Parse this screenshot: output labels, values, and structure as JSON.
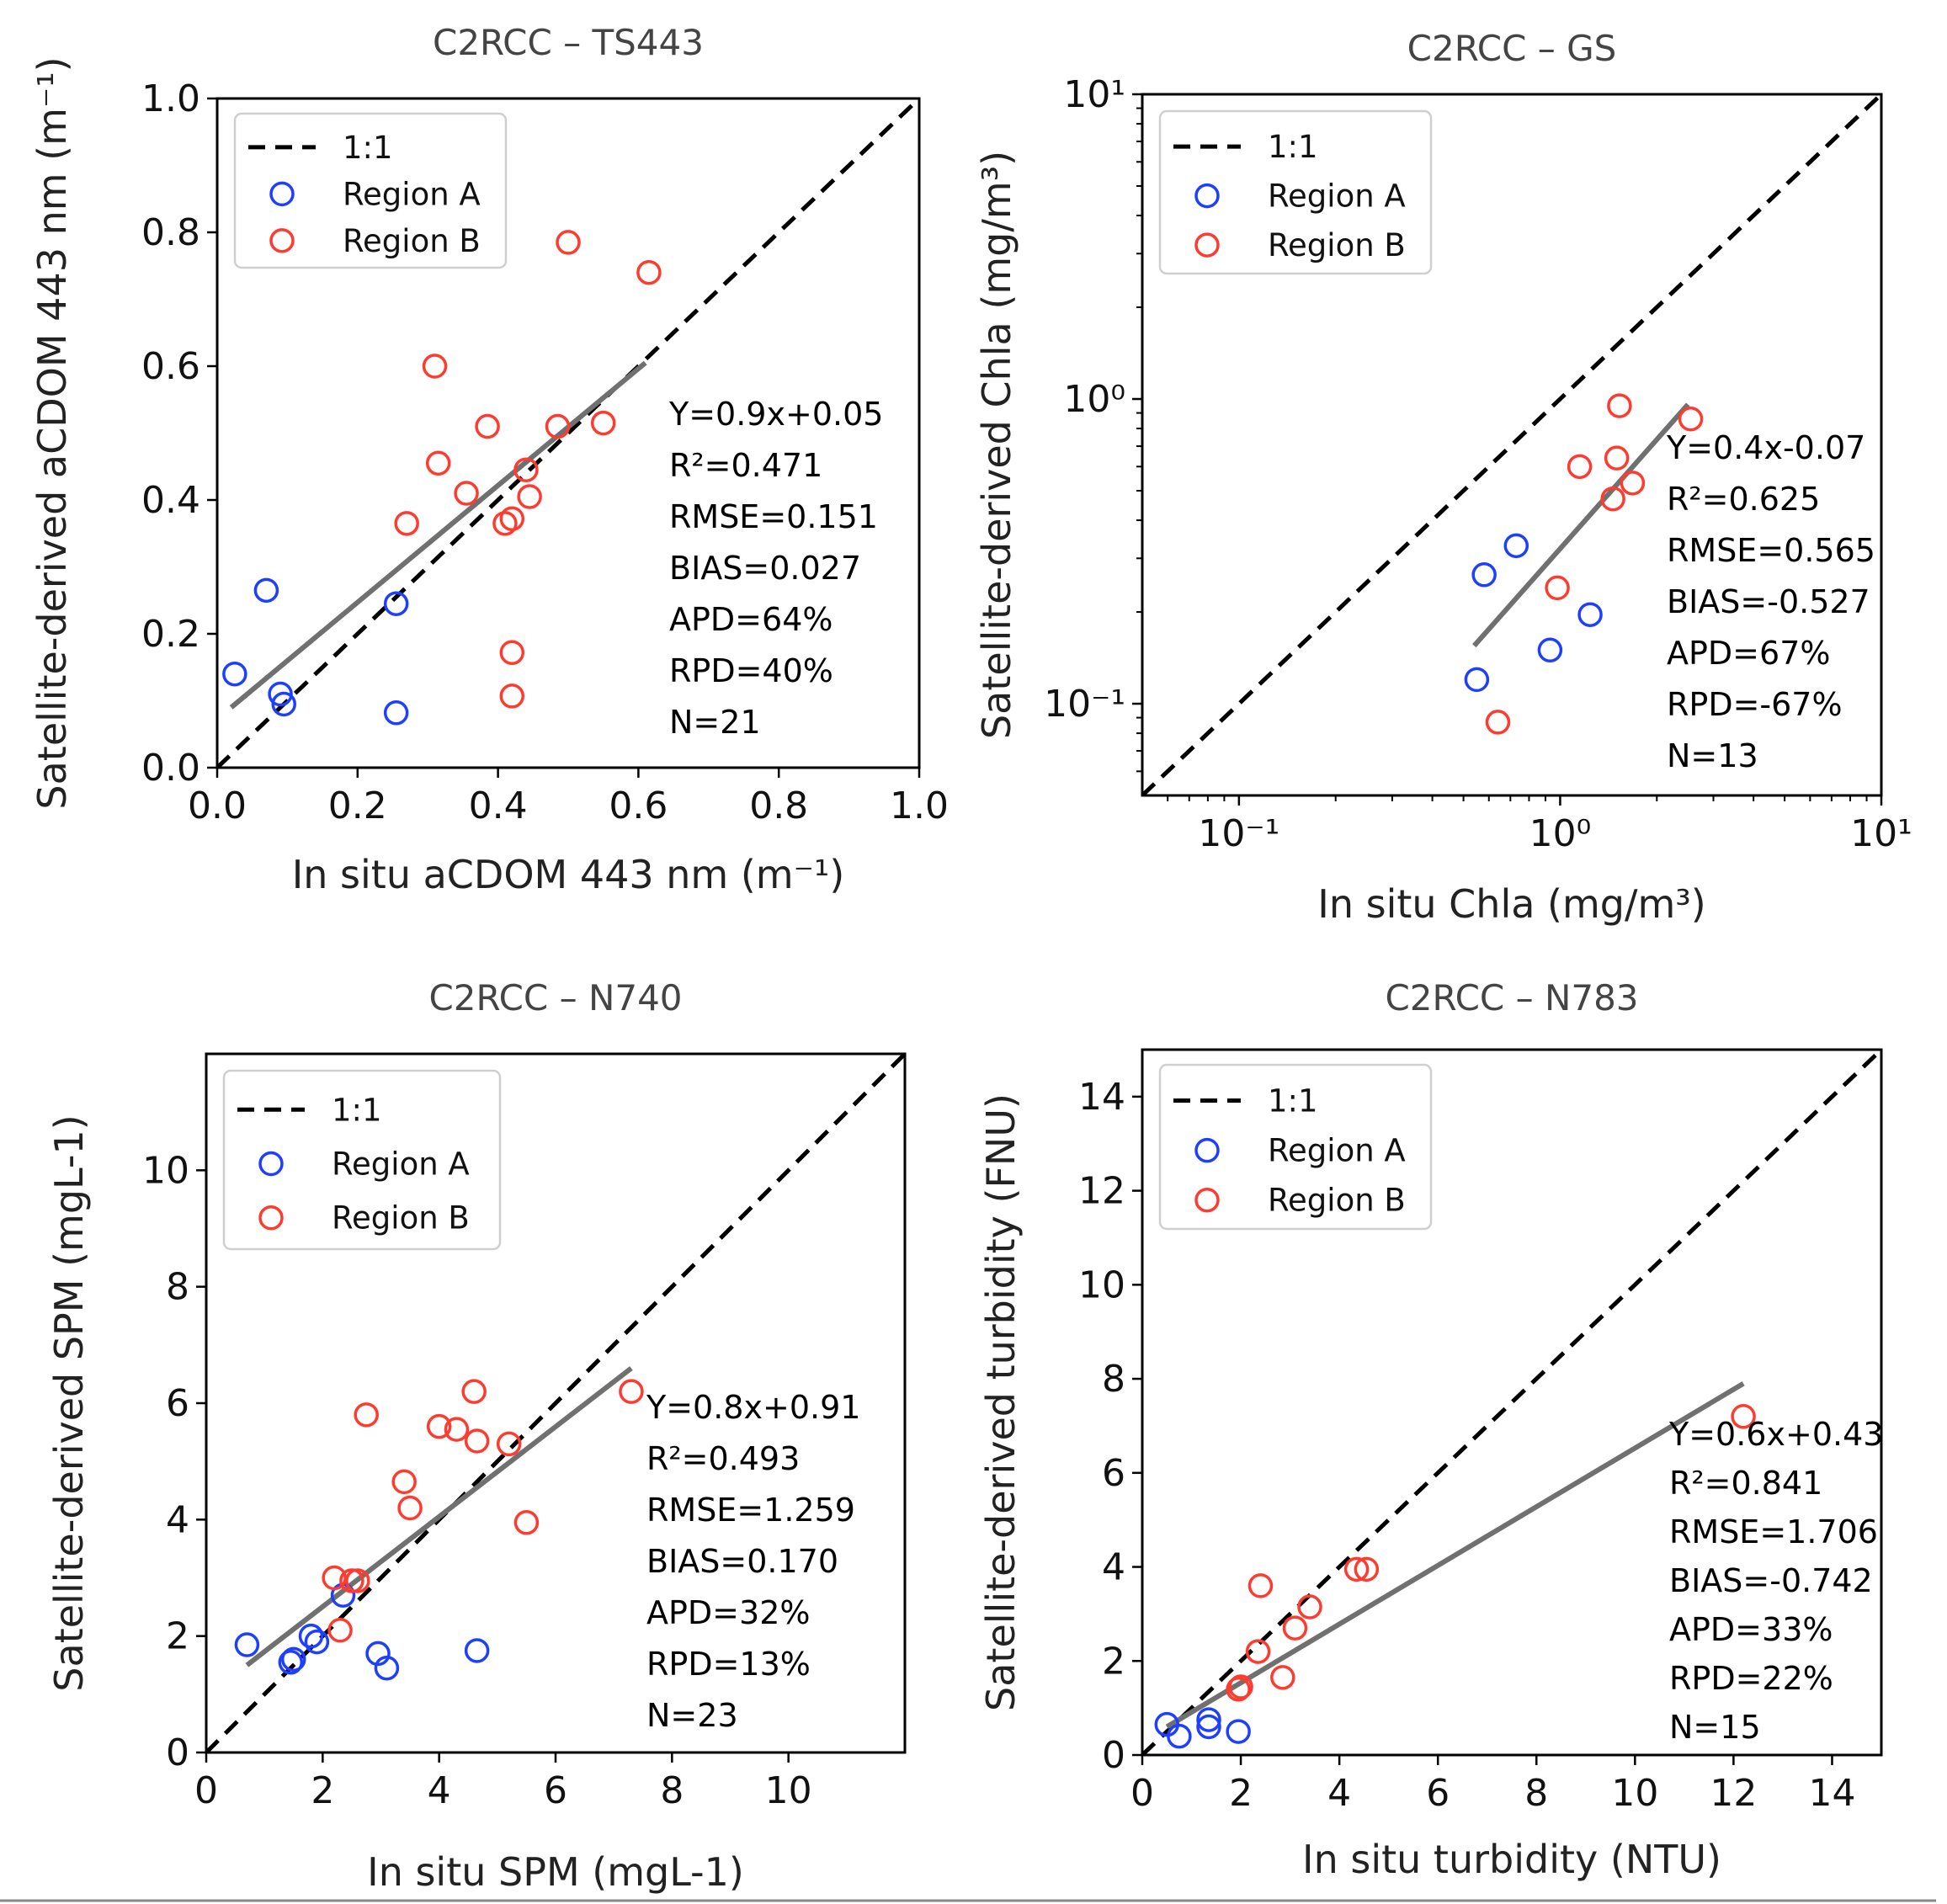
{
  "legend_labels": {
    "one_to_one": "1:1",
    "region_a": "Region A",
    "region_b": "Region B"
  },
  "colors": {
    "region_a": "#1f3fff",
    "region_b": "#ff3b2f",
    "fit": "#707070",
    "one_to_one": "#000000"
  },
  "chart_data": [
    {
      "id": "ts443",
      "type": "scatter",
      "title": "C2RCC – TS443",
      "xlabel": "In situ aCDOM 443 nm (m⁻¹)",
      "ylabel": "Satellite-derived aCDOM 443 nm (m⁻¹)",
      "scale": "linear",
      "xlim": [
        0,
        1
      ],
      "ylim": [
        0,
        1
      ],
      "xticks": [
        0,
        0.2,
        0.4,
        0.6,
        0.8,
        1.0
      ],
      "yticks": [
        0,
        0.2,
        0.4,
        0.6,
        0.8,
        1.0
      ],
      "xtick_labels": [
        "0.0",
        "0.2",
        "0.4",
        "0.6",
        "0.8",
        "1.0"
      ],
      "ytick_labels": [
        "0.0",
        "0.2",
        "0.4",
        "0.6",
        "0.8",
        "1.0"
      ],
      "legend": [
        "1:1",
        "Region A",
        "Region B"
      ],
      "fit": {
        "x": [
          0.02,
          0.61
        ],
        "y": [
          0.09,
          0.605
        ]
      },
      "series": [
        {
          "name": "Region A",
          "x": [
            0.025,
            0.07,
            0.09,
            0.095,
            0.255,
            0.255
          ],
          "y": [
            0.14,
            0.265,
            0.11,
            0.095,
            0.245,
            0.082
          ]
        },
        {
          "name": "Region B",
          "x": [
            0.5,
            0.615,
            0.31,
            0.385,
            0.485,
            0.55,
            0.315,
            0.355,
            0.44,
            0.445,
            0.27,
            0.41,
            0.42,
            0.42,
            0.42
          ],
          "y": [
            0.785,
            0.74,
            0.6,
            0.51,
            0.51,
            0.515,
            0.455,
            0.41,
            0.445,
            0.405,
            0.365,
            0.365,
            0.372,
            0.172,
            0.107
          ]
        }
      ],
      "stats": [
        "Y=0.9x+0.05",
        "R²=0.471",
        "RMSE=0.151",
        "BIAS=0.027",
        "APD=64%",
        "RPD=40%",
        "N=21"
      ]
    },
    {
      "id": "gs",
      "type": "scatter",
      "title": "C2RCC – GS",
      "xlabel": "In situ Chla (mg/m³)",
      "ylabel": "Satellite-derived Chla (mg/m³)",
      "scale": "log",
      "xlim": [
        0.05,
        10
      ],
      "ylim": [
        0.05,
        10
      ],
      "xticks": [
        0.1,
        1,
        10
      ],
      "yticks": [
        0.1,
        1,
        10
      ],
      "xtick_labels": [
        "10⁻¹",
        "10⁰",
        "10¹"
      ],
      "ytick_labels": [
        "10⁻¹",
        "10⁰",
        "10¹"
      ],
      "legend": [
        "1:1",
        "Region A",
        "Region B"
      ],
      "fit": {
        "x": [
          0.54,
          2.5
        ],
        "y": [
          0.155,
          0.96
        ]
      },
      "series": [
        {
          "name": "Region A",
          "x": [
            0.73,
            0.58,
            1.24,
            0.93,
            0.55
          ],
          "y": [
            0.33,
            0.265,
            0.196,
            0.15,
            0.12
          ]
        },
        {
          "name": "Region B",
          "x": [
            1.53,
            2.55,
            1.15,
            1.5,
            1.68,
            1.46,
            0.98,
            0.64
          ],
          "y": [
            0.95,
            0.86,
            0.6,
            0.64,
            0.53,
            0.47,
            0.24,
            0.087
          ]
        }
      ],
      "stats": [
        "Y=0.4x-0.07",
        "R²=0.625",
        "RMSE=0.565",
        "BIAS=-0.527",
        "APD=67%",
        "RPD=-67%",
        "N=13"
      ]
    },
    {
      "id": "n740",
      "type": "scatter",
      "title": "C2RCC – N740",
      "xlabel": "In situ SPM (mgL-1)",
      "ylabel": "Satellite-derived SPM (mgL-1)",
      "scale": "linear",
      "xlim": [
        0,
        12
      ],
      "ylim": [
        0,
        12
      ],
      "xticks": [
        0,
        2,
        4,
        6,
        8,
        10
      ],
      "yticks": [
        0,
        2,
        4,
        6,
        8,
        10
      ],
      "xtick_labels": [
        "0",
        "2",
        "4",
        "6",
        "8",
        "10"
      ],
      "ytick_labels": [
        "0",
        "2",
        "4",
        "6",
        "8",
        "10"
      ],
      "legend": [
        "1:1",
        "Region A",
        "Region B"
      ],
      "fit": {
        "x": [
          0.7,
          7.3
        ],
        "y": [
          1.5,
          6.6
        ]
      },
      "series": [
        {
          "name": "Region A",
          "x": [
            0.7,
            1.45,
            1.5,
            1.8,
            1.9,
            2.35,
            2.95,
            3.1,
            4.65
          ],
          "y": [
            1.85,
            1.55,
            1.6,
            2.0,
            1.9,
            2.7,
            1.7,
            1.45,
            1.75
          ]
        },
        {
          "name": "Region B",
          "x": [
            7.3,
            2.75,
            4.6,
            4.0,
            4.3,
            4.65,
            5.2,
            3.4,
            3.5,
            5.5,
            2.2,
            2.5,
            2.6,
            2.3
          ],
          "y": [
            6.2,
            5.8,
            6.2,
            5.6,
            5.55,
            5.35,
            5.3,
            4.65,
            4.2,
            3.95,
            3.0,
            2.95,
            2.95,
            2.1
          ]
        }
      ],
      "stats": [
        "Y=0.8x+0.91",
        "R²=0.493",
        "RMSE=1.259",
        "BIAS=0.170",
        "APD=32%",
        "RPD=13%",
        "N=23"
      ]
    },
    {
      "id": "n783",
      "type": "scatter",
      "title": "C2RCC – N783",
      "xlabel": "In situ turbidity (NTU)",
      "ylabel": "Satellite-derived turbidity (FNU)",
      "scale": "linear",
      "xlim": [
        0,
        15
      ],
      "ylim": [
        0,
        15
      ],
      "xticks": [
        0,
        2,
        4,
        6,
        8,
        10,
        12,
        14
      ],
      "yticks": [
        0,
        2,
        4,
        6,
        8,
        10,
        12,
        14
      ],
      "xtick_labels": [
        "0",
        "2",
        "4",
        "6",
        "8",
        "10",
        "12",
        "14"
      ],
      "ytick_labels": [
        "0",
        "2",
        "4",
        "6",
        "8",
        "10",
        "12",
        "14"
      ],
      "legend": [
        "1:1",
        "Region A",
        "Region B"
      ],
      "fit": {
        "x": [
          0.5,
          12.2
        ],
        "y": [
          0.6,
          7.9
        ]
      },
      "series": [
        {
          "name": "Region A",
          "x": [
            0.5,
            0.75,
            1.35,
            1.35,
            1.95
          ],
          "y": [
            0.65,
            0.4,
            0.75,
            0.6,
            0.5
          ]
        },
        {
          "name": "Region B",
          "x": [
            12.2,
            2.4,
            4.35,
            4.55,
            3.4,
            3.1,
            2.35,
            2.0,
            1.95,
            2.85
          ],
          "y": [
            7.2,
            3.6,
            3.95,
            3.95,
            3.15,
            2.7,
            2.2,
            1.45,
            1.4,
            1.65
          ]
        }
      ],
      "stats": [
        "Y=0.6x+0.43",
        "R²=0.841",
        "RMSE=1.706",
        "BIAS=-0.742",
        "APD=33%",
        "RPD=22%",
        "N=15"
      ]
    }
  ]
}
